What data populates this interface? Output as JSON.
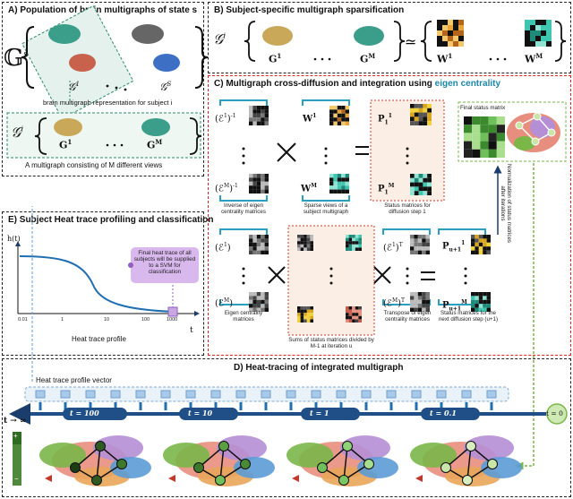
{
  "panelA": {
    "title": "A) Population of brain multigraphs of state s",
    "set_symbol": "𝔾",
    "set_superscript": "s",
    "g1": "𝒢",
    "g1_sup": "1",
    "gS": "𝒢",
    "gS_sup": "S",
    "sublabel": "brain multigraph representation for subject i",
    "gi": "𝒢",
    "gi_sup": "i",
    "G1": "G",
    "G1_sup": "1",
    "GM": "G",
    "GM_sup": "M",
    "caption": "A multigraph consisting of M different views"
  },
  "panelB": {
    "title": "B) Subject-specific multigraph sparsification",
    "W1_sup": "1",
    "WM_sup": "M"
  },
  "panelC": {
    "title_main": "C) Multigraph cross-diffusion and integration using",
    "title_accent": "eigen centrality",
    "label_inverse": "Inverse of eigen centrality matrices",
    "label_sparse": "Sparse views of a subject multigraph",
    "label_status1": "Status matrices for diffusion step 1",
    "label_eigen": "Eigen centrality matrices",
    "label_sums": "Sums of status matrices divided by M-1 at  iteration u",
    "label_transpose": "Transpose of eigen centrality matrices",
    "label_statusnext": "Status matrices for the next diffusion step (u+1)",
    "final_title": "Final status matrix",
    "normalization": "Normalization of status matrices after  iterations"
  },
  "panelE": {
    "title": "E)  Subject Heat trace profiling and classification",
    "ylabel": "h(t)",
    "xlabel": "Heat trace profile",
    "tlabel": "t",
    "note": "Final heat trace of all subjects will be supplied to a SVM for classification",
    "ticks": [
      "0.01",
      "1",
      "10",
      "100",
      "1000"
    ]
  },
  "panelD": {
    "title": "D)  Heat-tracing of integrated multigraph",
    "vector_label": "Heat trace profile vector",
    "t_inf": "t → ∞",
    "timesteps": [
      "t = 100",
      "t = 10",
      "t = 1",
      "t = 0.1"
    ],
    "t0": "t = 0",
    "heat_plus": "+",
    "heat_label": "heat",
    "heat_minus": "−"
  },
  "colors": {
    "accent": "#1c86a8",
    "red": "#dd2222",
    "purple": "#b58fd6",
    "green": "#7ab648",
    "arrow_blue": "#1f6fb2"
  }
}
